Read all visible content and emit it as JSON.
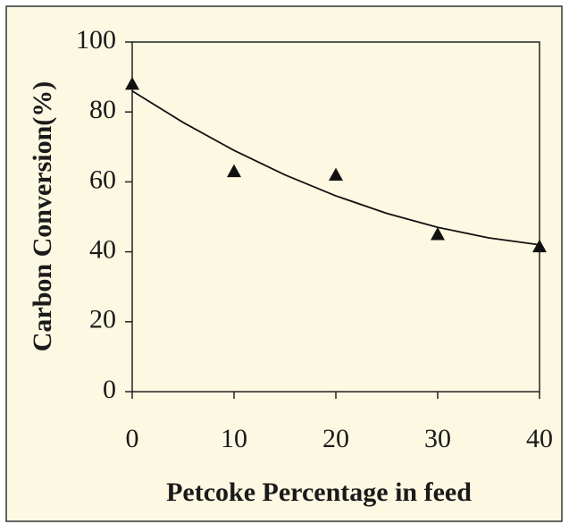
{
  "chart_data": {
    "type": "scatter",
    "x_label": "Petcoke Percentage in feed",
    "y_label": "Carbon Conversion(%)",
    "x": [
      0,
      10,
      20,
      30,
      40
    ],
    "values": [
      88,
      63,
      62,
      45,
      41.5
    ],
    "color": "#111111",
    "trendline": {
      "x": [
        0,
        5,
        10,
        15,
        20,
        25,
        30,
        35,
        40
      ],
      "values": [
        86,
        77,
        69,
        62,
        56,
        51,
        47,
        44,
        42
      ]
    },
    "xlim": [
      0,
      40
    ],
    "xticks": [
      0,
      10,
      20,
      30,
      40
    ],
    "ylim": [
      0,
      100
    ],
    "yticks": [
      0,
      20,
      40,
      60,
      80,
      100
    ],
    "grid": false
  }
}
